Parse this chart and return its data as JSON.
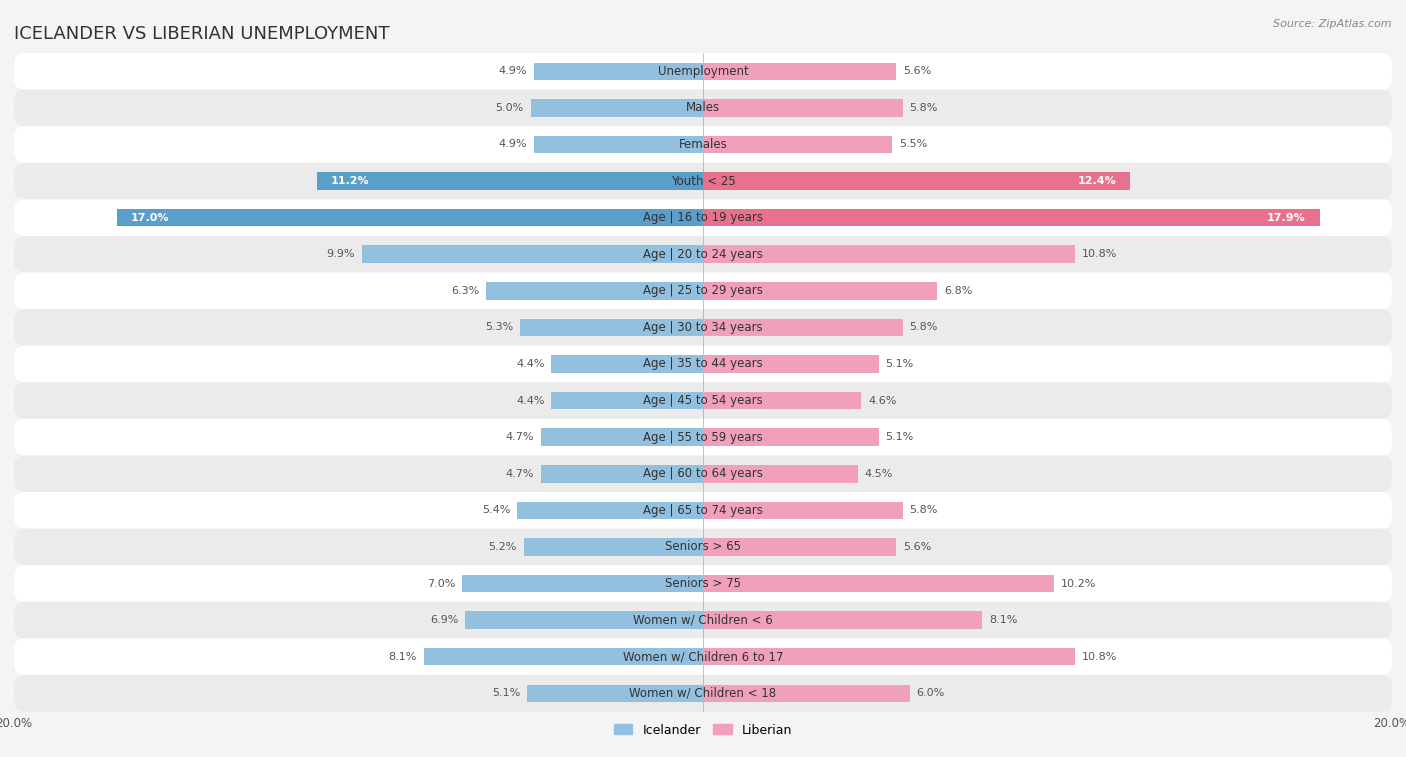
{
  "title": "ICELANDER VS LIBERIAN UNEMPLOYMENT",
  "source": "Source: ZipAtlas.com",
  "categories": [
    "Unemployment",
    "Males",
    "Females",
    "Youth < 25",
    "Age | 16 to 19 years",
    "Age | 20 to 24 years",
    "Age | 25 to 29 years",
    "Age | 30 to 34 years",
    "Age | 35 to 44 years",
    "Age | 45 to 54 years",
    "Age | 55 to 59 years",
    "Age | 60 to 64 years",
    "Age | 65 to 74 years",
    "Seniors > 65",
    "Seniors > 75",
    "Women w/ Children < 6",
    "Women w/ Children 6 to 17",
    "Women w/ Children < 18"
  ],
  "icelander": [
    4.9,
    5.0,
    4.9,
    11.2,
    17.0,
    9.9,
    6.3,
    5.3,
    4.4,
    4.4,
    4.7,
    4.7,
    5.4,
    5.2,
    7.0,
    6.9,
    8.1,
    5.1
  ],
  "liberian": [
    5.6,
    5.8,
    5.5,
    12.4,
    17.9,
    10.8,
    6.8,
    5.8,
    5.1,
    4.6,
    5.1,
    4.5,
    5.8,
    5.6,
    10.2,
    8.1,
    10.8,
    6.0
  ],
  "icelander_color": "#92c0de",
  "liberian_color": "#f0a0b8",
  "bar_height": 0.48,
  "xlim": 20.0,
  "background_color": "#f4f4f4",
  "row_light_color": "#ffffff",
  "row_dark_color": "#ebebeb",
  "title_fontsize": 13,
  "label_fontsize": 8.5,
  "value_fontsize": 8,
  "legend_fontsize": 9,
  "highlight_rows": [
    3,
    4
  ],
  "highlight_icelander_color": "#5b9ec9",
  "highlight_liberian_color": "#e8728e",
  "value_color_normal": "#555555",
  "value_color_highlight_ice": "#ffffff",
  "value_color_highlight_lib": "#ffffff"
}
